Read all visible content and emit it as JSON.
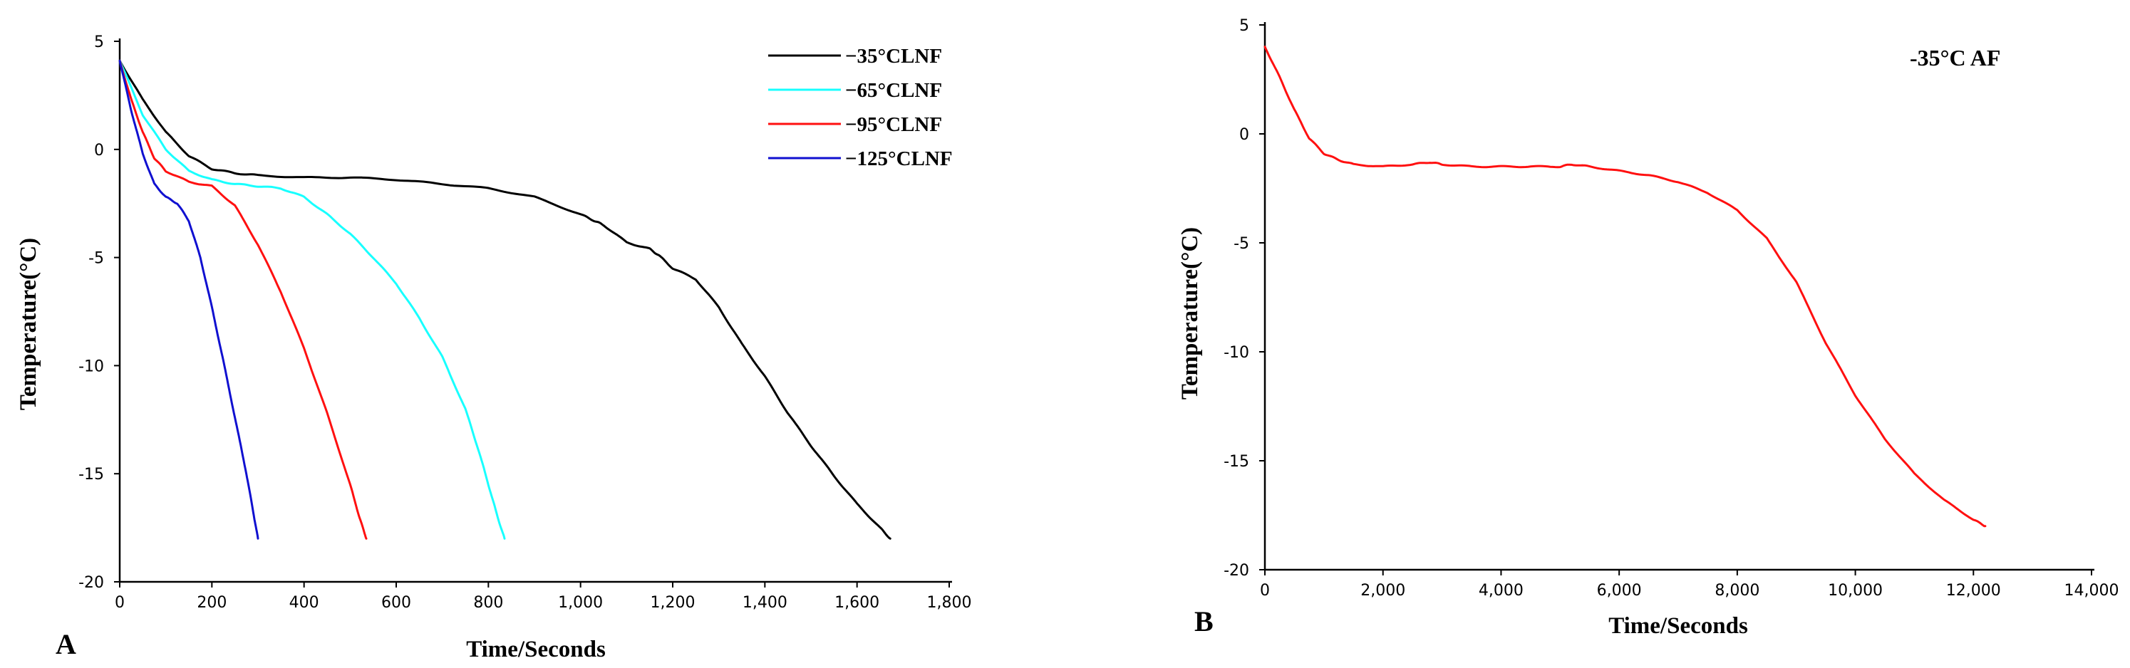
{
  "chart_data": [
    {
      "type": "line",
      "panel_label": "A",
      "xlabel": "Time/Seconds",
      "ylabel": "Temperature(°C)",
      "xlim": [
        0,
        1800
      ],
      "ylim": [
        -20,
        5
      ],
      "xticks": [
        0,
        200,
        400,
        600,
        800,
        1000,
        1200,
        1400,
        1600,
        1800
      ],
      "xtick_labels": [
        "0",
        "200",
        "400",
        "600",
        "800",
        "1,000",
        "1,200",
        "1,400",
        "1,600",
        "1,800"
      ],
      "yticks": [
        5,
        0,
        -5,
        -10,
        -15,
        -20
      ],
      "ytick_labels": [
        "5",
        "0",
        "-5",
        "-10",
        "-15",
        "-20"
      ],
      "legend_position": "top-right",
      "series": [
        {
          "name": "−35°CLNF",
          "color": "#000000",
          "x": [
            0,
            50,
            100,
            150,
            200,
            250,
            300,
            400,
            500,
            600,
            700,
            800,
            900,
            1000,
            1030,
            1050,
            1100,
            1150,
            1170,
            1200,
            1250,
            1300,
            1350,
            1400,
            1450,
            1500,
            1550,
            1600,
            1650,
            1672
          ],
          "y": [
            4.1,
            2.3,
            0.8,
            -0.3,
            -0.9,
            -1.1,
            -1.2,
            -1.3,
            -1.3,
            -1.4,
            -1.6,
            -1.8,
            -2.2,
            -3.0,
            -3.3,
            -3.5,
            -4.3,
            -4.6,
            -4.9,
            -5.5,
            -6.0,
            -7.3,
            -9.0,
            -10.5,
            -12.2,
            -13.7,
            -15.1,
            -16.4,
            -17.5,
            -18.0
          ]
        },
        {
          "name": "−65°CLNF",
          "color": "#18ffff",
          "x": [
            0,
            50,
            100,
            150,
            200,
            250,
            300,
            350,
            400,
            450,
            500,
            550,
            600,
            650,
            700,
            750,
            780,
            800,
            820,
            835
          ],
          "y": [
            4.1,
            1.6,
            0.0,
            -1.0,
            -1.4,
            -1.6,
            -1.7,
            -1.8,
            -2.2,
            -3.0,
            -3.9,
            -5.0,
            -6.2,
            -7.8,
            -9.6,
            -12.0,
            -14.0,
            -15.5,
            -17.0,
            -18.0
          ]
        },
        {
          "name": "−95°CLNF",
          "color": "#ff1010",
          "x": [
            0,
            25,
            50,
            75,
            100,
            150,
            200,
            250,
            300,
            350,
            400,
            450,
            500,
            520,
            535
          ],
          "y": [
            4.1,
            2.3,
            0.8,
            -0.4,
            -1.0,
            -1.5,
            -1.7,
            -2.6,
            -4.4,
            -6.6,
            -9.2,
            -12.2,
            -15.5,
            -17.0,
            -18.0
          ]
        },
        {
          "name": "−125°CLNF",
          "color": "#1010d0",
          "x": [
            0,
            25,
            50,
            75,
            100,
            125,
            150,
            175,
            200,
            225,
            250,
            275,
            290,
            300
          ],
          "y": [
            4.1,
            1.8,
            -0.2,
            -1.6,
            -2.2,
            -2.5,
            -3.3,
            -5.0,
            -7.3,
            -9.8,
            -12.4,
            -15.0,
            -16.8,
            -18.0
          ]
        }
      ]
    },
    {
      "type": "line",
      "panel_label": "B",
      "xlabel": "Time/Seconds",
      "ylabel": "Temperature(°C)",
      "annotation": "-35°C AF",
      "xlim": [
        0,
        14000
      ],
      "ylim": [
        -20,
        5
      ],
      "xticks": [
        0,
        2000,
        4000,
        6000,
        8000,
        10000,
        12000,
        14000
      ],
      "xtick_labels": [
        "0",
        "2,000",
        "4,000",
        "6,000",
        "8,000",
        "10,000",
        "12,000",
        "14,000"
      ],
      "yticks": [
        5,
        0,
        -5,
        -10,
        -15,
        -20
      ],
      "ytick_labels": [
        "5",
        "0",
        "-5",
        "-10",
        "-15",
        "-20"
      ],
      "series": [
        {
          "name": "-35°C AF",
          "color": "#ff1010",
          "x": [
            0,
            250,
            500,
            750,
            1000,
            1250,
            1500,
            2000,
            2500,
            2800,
            3000,
            3500,
            4000,
            4500,
            5000,
            5200,
            5500,
            6000,
            6500,
            7000,
            7500,
            8000,
            8500,
            9000,
            9500,
            10000,
            10500,
            11000,
            11500,
            12000,
            12200
          ],
          "y": [
            4.0,
            2.6,
            1.1,
            -0.2,
            -0.9,
            -1.2,
            -1.4,
            -1.5,
            -1.4,
            -1.3,
            -1.4,
            -1.5,
            -1.5,
            -1.5,
            -1.5,
            -1.4,
            -1.5,
            -1.7,
            -1.9,
            -2.2,
            -2.7,
            -3.5,
            -4.8,
            -6.8,
            -9.6,
            -12.0,
            -14.0,
            -15.6,
            -16.8,
            -17.7,
            -18.0
          ]
        }
      ]
    }
  ]
}
